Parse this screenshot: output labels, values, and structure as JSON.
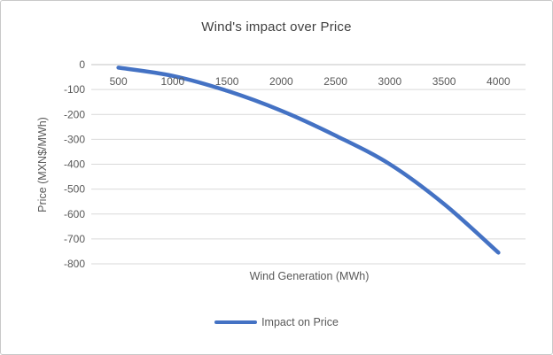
{
  "chart_data": {
    "type": "line",
    "title": "Wind's impact over Price",
    "xlabel": "Wind Generation (MWh)",
    "ylabel": "Price (MXN$/MWh)",
    "categories": [
      500,
      1000,
      1500,
      2000,
      2500,
      3000,
      3500,
      4000
    ],
    "series": [
      {
        "name": "Impact on Price",
        "values": [
          -12,
          -45,
          -105,
          -185,
          -285,
          -400,
          -560,
          -755
        ]
      }
    ],
    "y_ticks": [
      0,
      -100,
      -200,
      -300,
      -400,
      -500,
      -600,
      -700,
      -800
    ],
    "ylim": [
      -800,
      0
    ],
    "grid": "horizontal",
    "smooth": true,
    "legend_position": "bottom",
    "colors": {
      "line": "#4472C4",
      "gridline": "#D9D9D9",
      "zero_axis_line": "#C3C3C3",
      "tick_text": "#595959",
      "title_text": "#404040",
      "frame_border": "#C9C9C9"
    }
  }
}
